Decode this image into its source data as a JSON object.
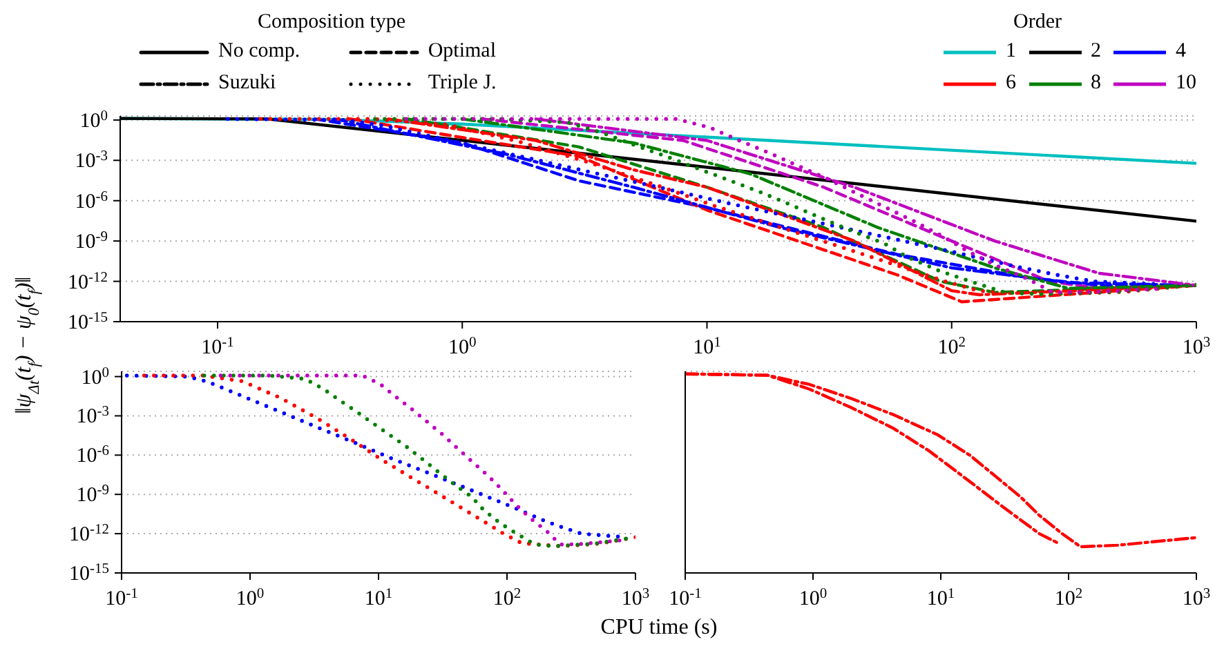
{
  "chart_data": [
    {
      "type": "line",
      "ylabel": "‖ψ$_{Δt}$(t$_{f}$) − ψ$_{0}$(t$_{f}$)‖",
      "legend_title": "Order",
      "legend": "top right",
      "log": "xy",
      "grid": "y",
      "annotations": [
        "Composition type",
        "No comp.",
        "Optimal",
        "Suzuki",
        "Triple J."
      ],
      "xlim": [
        0.04,
        1000
      ],
      "ylim": [
        1e-15,
        2
      ],
      "xticks": [
        {
          "value": 0.1,
          "label": "10$^{-1}$"
        },
        {
          "value": 1,
          "label": "10$^{0}$"
        },
        {
          "value": 10,
          "label": "10$^{1}$"
        },
        {
          "value": 100,
          "label": "10$^{2}$"
        },
        {
          "value": 1000,
          "label": "10$^{3}$"
        }
      ],
      "yticks": [
        {
          "value": 1,
          "label": "10$^{0}$"
        },
        {
          "value": 0.001,
          "label": "10$^{-3}$"
        },
        {
          "value": 1e-06,
          "label": "10$^{-6}$"
        },
        {
          "value": 1e-09,
          "label": "10$^{-9}$"
        },
        {
          "value": 1e-12,
          "label": "10$^{-12}$"
        },
        {
          "value": 1e-15,
          "label": "10$^{-15}$"
        }
      ],
      "series": [
        {
          "name": "1",
          "color": "#00bfbf",
          "line_style": "solid",
          "x": [
            0.04,
            0.3,
            1,
            1000
          ],
          "values": [
            1.3,
            1.1,
            0.5,
            0.0006
          ]
        },
        {
          "name": "2",
          "color": "#000000",
          "line_style": "solid",
          "x": [
            0.04,
            0.16,
            1000
          ],
          "values": [
            1.3,
            1.2,
            3e-08
          ]
        },
        {
          "name": "4",
          "color": "#0000ff",
          "line_style": "dashed",
          "x": [
            0.25,
            1,
            3,
            10,
            60,
            200,
            400,
            1000
          ],
          "values": [
            1.2,
            0.02,
            3e-05,
            3e-07,
            1e-10,
            2e-12,
            5e-13,
            5e-13
          ]
        },
        {
          "name": "6",
          "color": "#ff0000",
          "line_style": "dashed",
          "x": [
            0.35,
            1,
            3,
            10,
            60,
            110,
            1000
          ],
          "values": [
            1.2,
            0.05,
            0.002,
            2e-07,
            3e-12,
            3e-14,
            5e-13
          ]
        },
        {
          "name": "8",
          "color": "#008000",
          "line_style": "dashed",
          "x": [
            0.6,
            3,
            10,
            30,
            90,
            150,
            1000
          ],
          "values": [
            1.2,
            0.01,
            1e-05,
            1e-08,
            1e-12,
            1.5e-13,
            5e-13
          ]
        },
        {
          "name": "10",
          "color": "#bf00bf",
          "line_style": "dashed",
          "x": [
            1.2,
            8,
            30,
            100,
            250,
            400,
            1000
          ],
          "values": [
            1.2,
            0.03,
            1e-05,
            1e-09,
            1e-12,
            3e-13,
            5e-13
          ]
        },
        {
          "color": "#0000ff",
          "line_style": "dashdot",
          "x": [
            0.3,
            1.5,
            5,
            20,
            100,
            300,
            1000
          ],
          "values": [
            1.2,
            0.003,
            1e-05,
            1e-08,
            1e-11,
            8e-13,
            5e-13
          ]
        },
        {
          "color": "#ff0000",
          "line_style": "dashdot",
          "x": [
            0.5,
            2,
            5,
            10,
            40,
            100,
            130,
            1000
          ],
          "values": [
            1.2,
            0.03,
            0.0002,
            1e-05,
            1e-09,
            2e-13,
            1e-13,
            5e-13
          ]
        },
        {
          "color": "#008000",
          "line_style": "dashdot",
          "x": [
            1,
            5,
            15,
            50,
            150,
            300,
            1000
          ],
          "values": [
            1.2,
            0.02,
            0.0001,
            1e-08,
            1e-11,
            3e-13,
            5e-13
          ]
        },
        {
          "color": "#bf00bf",
          "line_style": "dashdot",
          "x": [
            2,
            10,
            40,
            150,
            400,
            1000
          ],
          "values": [
            1.2,
            0.03,
            1e-05,
            1e-09,
            4e-12,
            5e-13
          ]
        },
        {
          "color": "#0000ff",
          "line_style": "dotted",
          "x": [
            0.11,
            0.33,
            0.47,
            0.92,
            1.8,
            3.5,
            6.8,
            13,
            26,
            51,
            99,
            190,
            270,
            380,
            730
          ],
          "values": [
            1.2,
            1.0,
            0.4,
            0.026,
            0.0017,
            0.00011,
            7.6e-06,
            5e-07,
            3.4e-08,
            2.4e-09,
            1.7e-10,
            1.1e-11,
            3e-12,
            1e-12,
            6e-13
          ]
        },
        {
          "color": "#ff0000",
          "line_style": "dotted",
          "x": [
            0.15,
            0.43,
            0.87,
            1.7,
            3.2,
            5.9,
            10.7,
            19.8,
            37.5,
            70,
            94,
            130,
            260,
            516,
            1000
          ],
          "values": [
            1.2,
            1.2,
            0.45,
            0.025,
            0.00083,
            2e-05,
            4.2e-07,
            1.1e-08,
            2.5e-10,
            6e-12,
            1e-12,
            1.9e-13,
            1.1e-13,
            1.7e-13,
            5.4e-13
          ]
        },
        {
          "color": "#008000",
          "line_style": "dotted",
          "x": [
            0.44,
            1.4,
            1.9,
            2.7,
            3.8,
            5,
            6.8,
            9.1,
            12.2,
            16.5,
            22,
            29,
            39,
            53,
            66,
            88,
            120,
            165,
            230,
            480,
            1000
          ],
          "values": [
            1.2,
            1.2,
            0.91,
            0.66,
            0.1,
            0.015,
            0.002,
            0.00026,
            3.5e-05,
            4.4e-06,
            4.9e-07,
            5.5e-08,
            5.7e-09,
            6.6e-10,
            6.3e-11,
            6.6e-12,
            9.5e-13,
            1.5e-13,
            1.1e-13,
            1.7e-13,
            5.4e-13
          ]
        },
        {
          "color": "#bf00bf",
          "line_style": "dotted",
          "x": [
            0.59,
            7.5,
            10.3,
            13.5,
            18,
            24,
            31.5,
            41,
            54,
            71,
            92,
            116,
            152,
            203,
            260,
            370,
            750
          ],
          "values": [
            1.2,
            1.2,
            0.27,
            0.031,
            0.0035,
            0.00034,
            3.8e-05,
            3.4e-06,
            3e-07,
            2.7e-08,
            2.2e-09,
            1.8e-10,
            1.5e-11,
            1.6e-12,
            1.5e-13,
            1.6e-13,
            3e-13
          ]
        }
      ]
    },
    {
      "type": "line",
      "xlabel": "CPU time (s)",
      "log": "xy",
      "grid": "y",
      "xlim": [
        0.1,
        1000
      ],
      "ylim": [
        1e-15,
        2.5
      ],
      "xticks": [
        {
          "value": 0.1,
          "label": "10$^{-1}$"
        },
        {
          "value": 1,
          "label": "10$^{0}$"
        },
        {
          "value": 10,
          "label": "10$^{1}$"
        },
        {
          "value": 100,
          "label": "10$^{2}$"
        },
        {
          "value": 1000,
          "label": "10$^{3}$"
        }
      ],
      "yticks": [
        {
          "value": 1,
          "label": "10$^{0}$"
        },
        {
          "value": 0.001,
          "label": "10$^{-3}$"
        },
        {
          "value": 1e-06,
          "label": "10$^{-6}$"
        },
        {
          "value": 1e-09,
          "label": "10$^{-9}$"
        },
        {
          "value": 1e-12,
          "label": "10$^{-12}$"
        },
        {
          "value": 1e-15,
          "label": "10$^{-15}$"
        }
      ],
      "series": [
        {
          "color": "#0000ff",
          "line_style": "dotted",
          "x": [
            0.11,
            0.33,
            0.47,
            0.92,
            1.8,
            3.5,
            6.8,
            13,
            26,
            51,
            99,
            190,
            270,
            380,
            730
          ],
          "values": [
            1.2,
            1.0,
            0.4,
            0.026,
            0.0017,
            0.00011,
            7.6e-06,
            5e-07,
            3.4e-08,
            2.4e-09,
            1.7e-10,
            1.1e-11,
            3e-12,
            1e-12,
            6e-13
          ]
        },
        {
          "color": "#ff0000",
          "line_style": "dotted",
          "x": [
            0.15,
            0.43,
            0.87,
            1.7,
            3.2,
            5.9,
            10.7,
            19.8,
            37.5,
            70,
            94,
            130,
            260,
            516,
            1000
          ],
          "values": [
            1.2,
            1.2,
            0.45,
            0.025,
            0.00083,
            2e-05,
            4.2e-07,
            1.1e-08,
            2.5e-10,
            6e-12,
            1e-12,
            1.9e-13,
            1.1e-13,
            1.7e-13,
            5.4e-13
          ]
        },
        {
          "color": "#008000",
          "line_style": "dotted",
          "x": [
            0.44,
            1.4,
            1.9,
            2.7,
            3.8,
            5,
            6.8,
            9.1,
            12.2,
            16.5,
            22,
            29,
            39,
            53,
            66,
            88,
            120,
            165,
            230,
            480,
            1000
          ],
          "values": [
            1.2,
            1.2,
            0.91,
            0.66,
            0.1,
            0.015,
            0.002,
            0.00026,
            3.5e-05,
            4.4e-06,
            4.9e-07,
            5.5e-08,
            5.7e-09,
            6.6e-10,
            6.3e-11,
            6.6e-12,
            9.5e-13,
            1.5e-13,
            1.1e-13,
            1.7e-13,
            5.4e-13
          ]
        },
        {
          "color": "#bf00bf",
          "line_style": "dotted",
          "x": [
            0.59,
            7.5,
            10.3,
            13.5,
            18,
            24,
            31.5,
            41,
            54,
            71,
            92,
            116,
            152,
            203,
            260,
            370,
            750
          ],
          "values": [
            1.2,
            1.2,
            0.27,
            0.031,
            0.0035,
            0.00034,
            3.8e-05,
            3.4e-06,
            3e-07,
            2.7e-08,
            2.2e-09,
            1.8e-10,
            1.5e-11,
            1.6e-12,
            1.5e-13,
            1.6e-13,
            3e-13
          ]
        }
      ]
    },
    {
      "type": "line",
      "log": "xy",
      "grid": "y",
      "tick_labels": "x",
      "xlim": [
        0.1,
        1000
      ],
      "ylim": [
        1e-15,
        2.5
      ],
      "xticks": [
        {
          "value": 0.1,
          "label": "10$^{-1}$"
        },
        {
          "value": 1,
          "label": "10$^{0}$"
        },
        {
          "value": 10,
          "label": "10$^{1}$"
        },
        {
          "value": 100,
          "label": "10$^{2}$"
        },
        {
          "value": 1000,
          "label": "10$^{3}$"
        }
      ],
      "yticks": [
        {
          "value": 1,
          "label": null
        },
        {
          "value": 0.001,
          "label": null
        },
        {
          "value": 1e-06,
          "label": null
        },
        {
          "value": 1e-09,
          "label": null
        },
        {
          "value": 1e-12,
          "label": null
        },
        {
          "value": 1e-15,
          "label": null
        }
      ],
      "series": [
        {
          "color": "#ff0000",
          "line_style": "dashdot",
          "x": [
            0.1,
            0.44,
            0.94,
            1.97,
            4.2,
            9.5,
            17,
            28,
            42,
            59,
            89,
            124,
            240,
            1000
          ],
          "values": [
            1.6,
            1.26,
            0.25,
            0.022,
            0.0013,
            3.5e-05,
            9.3e-07,
            1.7e-08,
            6.5e-10,
            2.5e-11,
            1e-12,
            1e-13,
            1.3e-13,
            5e-13
          ]
        },
        {
          "color": "#ff0000",
          "line_style": "dashdot",
          "x": [
            0.1,
            0.44,
            0.94,
            1.97,
            4.2,
            8.1,
            15.6,
            30,
            59,
            82
          ],
          "values": [
            1.6,
            1.26,
            0.11,
            0.0045,
            0.00012,
            2.1e-06,
            1.7e-08,
            1.3e-10,
            1e-12,
            2e-13
          ]
        }
      ]
    }
  ]
}
